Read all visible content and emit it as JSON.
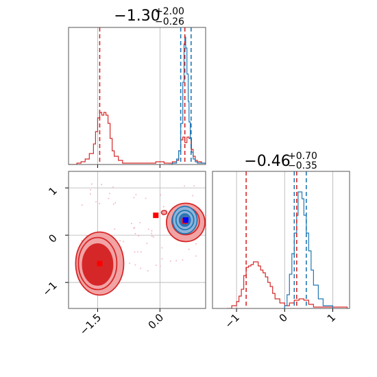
{
  "colors": {
    "red": "#d62728",
    "blue": "#1f77b4",
    "red_fill_outer": "#f2a3a4",
    "red_fill_inner": "#d62728",
    "blue_fill_outer": "#8fb3d9",
    "blue_fill_inner": "#3d6fb0",
    "axis": "#000000",
    "grid": "#b0b0b0",
    "marker_red": "#ff0000",
    "marker_blue": "#0000ff",
    "scatter": "#f4b6c8"
  },
  "chart_data": [
    {
      "panel": "marginal-param1",
      "type": "line",
      "title_main": "−1.30",
      "title_sup": "+2.00",
      "title_sub": "−0.26",
      "xlim": [
        -2.2,
        1.1
      ],
      "ylim": [
        0,
        1
      ],
      "grid": true,
      "x_ticks": [
        -1.5,
        0.0
      ],
      "red_lines": [
        -1.45,
        0.6
      ],
      "blue_lines": [
        0.5,
        0.6,
        0.75
      ],
      "series": [
        {
          "color_key": "red",
          "x": [
            -2.2,
            -2.0,
            -1.9,
            -1.8,
            -1.7,
            -1.6,
            -1.55,
            -1.5,
            -1.45,
            -1.4,
            -1.35,
            -1.3,
            -1.25,
            -1.2,
            -1.15,
            -1.1,
            -1.0,
            -0.9,
            -0.7,
            -0.5,
            -0.3,
            -0.1,
            0.1,
            0.3,
            0.4,
            0.45,
            0.5,
            0.55,
            0.6,
            0.65,
            0.7,
            0.75,
            0.8,
            0.85,
            0.9,
            1.0,
            1.1
          ],
          "y": [
            0,
            0.01,
            0.02,
            0.04,
            0.08,
            0.15,
            0.24,
            0.34,
            0.38,
            0.36,
            0.38,
            0.36,
            0.3,
            0.19,
            0.1,
            0.06,
            0.03,
            0.01,
            0.01,
            0.01,
            0.01,
            0.02,
            0.01,
            0.02,
            0.03,
            0.1,
            0.18,
            0.2,
            0.16,
            0.2,
            0.19,
            0.11,
            0.06,
            0.03,
            0.02,
            0.01,
            0
          ]
        },
        {
          "color_key": "blue",
          "x": [
            0.2,
            0.3,
            0.4,
            0.45,
            0.5,
            0.55,
            0.58,
            0.6,
            0.62,
            0.65,
            0.68,
            0.7,
            0.73,
            0.76,
            0.8,
            0.85,
            0.9,
            1.0,
            1.1
          ],
          "y": [
            0,
            0.01,
            0.04,
            0.1,
            0.3,
            0.6,
            0.88,
            0.93,
            0.85,
            0.66,
            0.46,
            0.31,
            0.19,
            0.09,
            0.04,
            0.02,
            0.01,
            0.01,
            0
          ]
        }
      ]
    },
    {
      "panel": "marginal-param2",
      "type": "line",
      "title_main": "−0.46",
      "title_sup": "+0.70",
      "title_sub": "−0.35",
      "xlim": [
        -1.5,
        1.35
      ],
      "ylim": [
        0,
        1
      ],
      "grid": true,
      "x_ticks": [
        -1,
        0,
        1
      ],
      "red_lines": [
        -0.8,
        0.25
      ],
      "blue_lines": [
        0.2,
        0.45
      ],
      "series": [
        {
          "color_key": "red",
          "x": [
            -1.2,
            -1.1,
            -1.0,
            -0.95,
            -0.9,
            -0.85,
            -0.8,
            -0.75,
            -0.7,
            -0.65,
            -0.6,
            -0.55,
            -0.5,
            -0.45,
            -0.4,
            -0.35,
            -0.3,
            -0.25,
            -0.2,
            -0.1,
            0.0,
            0.1,
            0.2,
            0.3,
            0.4,
            0.5,
            0.6,
            0.8,
            1.0,
            1.3
          ],
          "y": [
            0,
            0.02,
            0.05,
            0.09,
            0.14,
            0.24,
            0.3,
            0.31,
            0.32,
            0.34,
            0.34,
            0.31,
            0.28,
            0.26,
            0.23,
            0.19,
            0.16,
            0.11,
            0.07,
            0.04,
            0.02,
            0.04,
            0.06,
            0.07,
            0.06,
            0.03,
            0.01,
            0.01,
            0.01,
            0
          ]
        },
        {
          "color_key": "blue",
          "x": [
            -0.05,
            0.0,
            0.05,
            0.1,
            0.15,
            0.2,
            0.25,
            0.28,
            0.32,
            0.36,
            0.4,
            0.45,
            0.5,
            0.55,
            0.6,
            0.7,
            0.8,
            1.0
          ],
          "y": [
            0,
            0.02,
            0.1,
            0.25,
            0.4,
            0.55,
            0.68,
            0.85,
            0.85,
            0.8,
            0.68,
            0.55,
            0.42,
            0.28,
            0.17,
            0.07,
            0.02,
            0
          ]
        }
      ]
    },
    {
      "panel": "joint",
      "type": "scatter",
      "xlim": [
        -2.2,
        1.1
      ],
      "ylim": [
        -1.55,
        1.35
      ],
      "grid": true,
      "x_ticks": [
        -1.5,
        0.0
      ],
      "y_ticks": [
        -1,
        0,
        1
      ],
      "points": [
        {
          "x": -1.45,
          "y": -0.6,
          "color_key": "marker_red"
        },
        {
          "x": -0.1,
          "y": 0.42,
          "color_key": "marker_red"
        },
        {
          "x": 0.6,
          "y": 0.3,
          "color_key": "marker_red"
        },
        {
          "x": 0.62,
          "y": 0.32,
          "color_key": "marker_blue"
        }
      ]
    }
  ]
}
